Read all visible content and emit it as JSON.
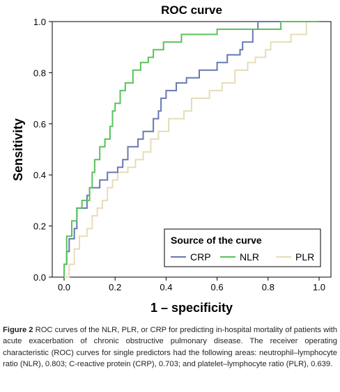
{
  "chart_data": {
    "type": "line",
    "title": "ROC curve",
    "xlabel": "1 – specificity",
    "ylabel": "Sensitivity",
    "xlim": [
      0,
      1
    ],
    "ylim": [
      0,
      1
    ],
    "xticks": [
      "0.0",
      "0.2",
      "0.4",
      "0.6",
      "0.8",
      "1.0"
    ],
    "yticks": [
      "0.0",
      "0.2",
      "0.4",
      "0.6",
      "0.8",
      "1.0"
    ],
    "grid": false,
    "legend": {
      "title": "Source of the curve",
      "placement": "bottom-right"
    },
    "series": [
      {
        "name": "CRP",
        "color": "#6678b2",
        "points": [
          [
            0,
            0
          ],
          [
            0,
            0.05
          ],
          [
            0.01,
            0.05
          ],
          [
            0.01,
            0.1
          ],
          [
            0.02,
            0.1
          ],
          [
            0.02,
            0.15
          ],
          [
            0.04,
            0.15
          ],
          [
            0.04,
            0.19
          ],
          [
            0.05,
            0.19
          ],
          [
            0.05,
            0.27
          ],
          [
            0.09,
            0.27
          ],
          [
            0.09,
            0.32
          ],
          [
            0.1,
            0.32
          ],
          [
            0.1,
            0.35
          ],
          [
            0.14,
            0.35
          ],
          [
            0.14,
            0.38
          ],
          [
            0.17,
            0.38
          ],
          [
            0.17,
            0.41
          ],
          [
            0.21,
            0.41
          ],
          [
            0.21,
            0.43
          ],
          [
            0.23,
            0.43
          ],
          [
            0.23,
            0.46
          ],
          [
            0.25,
            0.46
          ],
          [
            0.25,
            0.51
          ],
          [
            0.29,
            0.51
          ],
          [
            0.29,
            0.54
          ],
          [
            0.31,
            0.54
          ],
          [
            0.31,
            0.57
          ],
          [
            0.35,
            0.57
          ],
          [
            0.35,
            0.62
          ],
          [
            0.37,
            0.62
          ],
          [
            0.37,
            0.65
          ],
          [
            0.38,
            0.65
          ],
          [
            0.38,
            0.7
          ],
          [
            0.4,
            0.7
          ],
          [
            0.4,
            0.73
          ],
          [
            0.44,
            0.73
          ],
          [
            0.44,
            0.76
          ],
          [
            0.48,
            0.76
          ],
          [
            0.48,
            0.78
          ],
          [
            0.53,
            0.78
          ],
          [
            0.53,
            0.81
          ],
          [
            0.6,
            0.81
          ],
          [
            0.6,
            0.84
          ],
          [
            0.64,
            0.84
          ],
          [
            0.64,
            0.87
          ],
          [
            0.69,
            0.87
          ],
          [
            0.69,
            0.89
          ],
          [
            0.7,
            0.89
          ],
          [
            0.7,
            0.92
          ],
          [
            0.74,
            0.92
          ],
          [
            0.74,
            0.97
          ],
          [
            0.76,
            0.97
          ],
          [
            0.76,
            1.0
          ],
          [
            1.0,
            1.0
          ]
        ]
      },
      {
        "name": "NLR",
        "color": "#59c25a",
        "points": [
          [
            0,
            0
          ],
          [
            0,
            0.05
          ],
          [
            0.01,
            0.05
          ],
          [
            0.01,
            0.16
          ],
          [
            0.03,
            0.16
          ],
          [
            0.03,
            0.22
          ],
          [
            0.05,
            0.22
          ],
          [
            0.05,
            0.27
          ],
          [
            0.07,
            0.27
          ],
          [
            0.07,
            0.3
          ],
          [
            0.1,
            0.3
          ],
          [
            0.1,
            0.35
          ],
          [
            0.11,
            0.35
          ],
          [
            0.11,
            0.41
          ],
          [
            0.12,
            0.41
          ],
          [
            0.12,
            0.46
          ],
          [
            0.14,
            0.46
          ],
          [
            0.14,
            0.51
          ],
          [
            0.16,
            0.51
          ],
          [
            0.16,
            0.54
          ],
          [
            0.18,
            0.54
          ],
          [
            0.18,
            0.59
          ],
          [
            0.19,
            0.59
          ],
          [
            0.19,
            0.65
          ],
          [
            0.2,
            0.65
          ],
          [
            0.2,
            0.68
          ],
          [
            0.22,
            0.68
          ],
          [
            0.22,
            0.73
          ],
          [
            0.24,
            0.73
          ],
          [
            0.24,
            0.76
          ],
          [
            0.27,
            0.76
          ],
          [
            0.27,
            0.81
          ],
          [
            0.3,
            0.81
          ],
          [
            0.3,
            0.84
          ],
          [
            0.33,
            0.84
          ],
          [
            0.33,
            0.86
          ],
          [
            0.35,
            0.86
          ],
          [
            0.35,
            0.89
          ],
          [
            0.39,
            0.89
          ],
          [
            0.39,
            0.92
          ],
          [
            0.46,
            0.92
          ],
          [
            0.46,
            0.95
          ],
          [
            0.6,
            0.95
          ],
          [
            0.6,
            0.97
          ],
          [
            0.85,
            0.97
          ],
          [
            0.85,
            1.0
          ],
          [
            1.0,
            1.0
          ]
        ]
      },
      {
        "name": "PLR",
        "color": "#e6dcb8",
        "points": [
          [
            0,
            0
          ],
          [
            0.02,
            0
          ],
          [
            0.02,
            0.05
          ],
          [
            0.04,
            0.05
          ],
          [
            0.04,
            0.11
          ],
          [
            0.06,
            0.11
          ],
          [
            0.06,
            0.16
          ],
          [
            0.09,
            0.16
          ],
          [
            0.09,
            0.19
          ],
          [
            0.11,
            0.19
          ],
          [
            0.11,
            0.24
          ],
          [
            0.13,
            0.24
          ],
          [
            0.13,
            0.27
          ],
          [
            0.15,
            0.27
          ],
          [
            0.15,
            0.3
          ],
          [
            0.17,
            0.3
          ],
          [
            0.17,
            0.35
          ],
          [
            0.19,
            0.35
          ],
          [
            0.19,
            0.38
          ],
          [
            0.21,
            0.38
          ],
          [
            0.21,
            0.41
          ],
          [
            0.25,
            0.41
          ],
          [
            0.25,
            0.43
          ],
          [
            0.28,
            0.43
          ],
          [
            0.28,
            0.46
          ],
          [
            0.31,
            0.46
          ],
          [
            0.31,
            0.49
          ],
          [
            0.34,
            0.49
          ],
          [
            0.34,
            0.54
          ],
          [
            0.37,
            0.54
          ],
          [
            0.37,
            0.57
          ],
          [
            0.41,
            0.57
          ],
          [
            0.41,
            0.62
          ],
          [
            0.47,
            0.62
          ],
          [
            0.47,
            0.65
          ],
          [
            0.5,
            0.65
          ],
          [
            0.5,
            0.7
          ],
          [
            0.57,
            0.7
          ],
          [
            0.57,
            0.73
          ],
          [
            0.62,
            0.73
          ],
          [
            0.62,
            0.76
          ],
          [
            0.67,
            0.76
          ],
          [
            0.67,
            0.81
          ],
          [
            0.72,
            0.81
          ],
          [
            0.72,
            0.84
          ],
          [
            0.75,
            0.84
          ],
          [
            0.75,
            0.86
          ],
          [
            0.79,
            0.86
          ],
          [
            0.79,
            0.89
          ],
          [
            0.81,
            0.89
          ],
          [
            0.81,
            0.92
          ],
          [
            0.89,
            0.92
          ],
          [
            0.89,
            0.95
          ],
          [
            0.95,
            0.95
          ],
          [
            0.95,
            1.0
          ],
          [
            1.0,
            1.0
          ]
        ]
      }
    ]
  },
  "caption": {
    "label": "Figure 2",
    "text": " ROC curves of the NLR, PLR, or CRP for predicting in-hospital mortality of patients with acute exacerbation of chronic obstructive pulmonary disease. The receiver operating characteristic (ROC) curves for single predictors had the following areas: neutrophil–lymphocyte ratio (NLR), 0.803; C-reactive protein (CRP), 0.703; and platelet–lymphocyte ratio (PLR), 0.639."
  }
}
